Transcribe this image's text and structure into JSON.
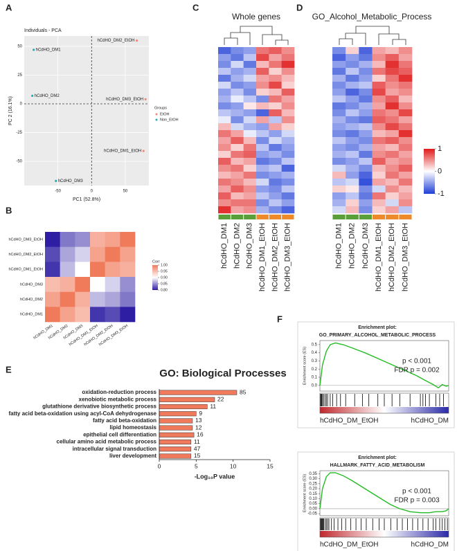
{
  "chart_data": [
    {
      "panel": "A",
      "type": "scatter",
      "title": "Individuals - PCA",
      "x_label": "PC1 (52.8%)",
      "y_label": "PC 2 (16.1%)",
      "xlim": [
        -100,
        85
      ],
      "ylim": [
        -71,
        59
      ],
      "xticks": [
        -50,
        0,
        50
      ],
      "yticks": [
        -50,
        -25,
        0,
        25,
        50
      ],
      "legend_title": "Groups",
      "legend": "right",
      "series": [
        {
          "name": "EtOH",
          "color": "#f4877a",
          "x": [
            67,
            80,
            77
          ],
          "y": [
            55,
            4,
            -41
          ],
          "labels": [
            "hCdHO_DM2_EtOH",
            "hCdHO_DM3_EtOH",
            "hCdHO_DM1_EtOH"
          ]
        },
        {
          "name": "Non_EtOH",
          "color": "#1fb0b8",
          "x": [
            -86,
            -88,
            -53
          ],
          "y": [
            47,
            7,
            -67
          ],
          "labels": [
            "hCdHO_DM1",
            "hCdHO_DM2",
            "hCdHO_DM3"
          ]
        }
      ]
    },
    {
      "panel": "B",
      "type": "heatmap",
      "rows": [
        "hCdHO_DM3_EtOH",
        "hCdHO_DM2_EtOH",
        "hCdHO_DM1_EtOH",
        "hCdHO_DM3",
        "hCdHO_DM2",
        "hCdHO_DM1"
      ],
      "columns": [
        "hCdHO_DM1",
        "hCdHO_DM2",
        "hCdHO_DM3",
        "hCdHO_DM1_EtOH",
        "hCdHO_DM2_EtOH",
        "hCdHO_DM3_EtOH"
      ],
      "values": [
        [
          0.8,
          0.84,
          0.85,
          0.96,
          0.97,
          1.0
        ],
        [
          0.82,
          0.86,
          0.88,
          0.97,
          1.0,
          0.97
        ],
        [
          0.81,
          0.87,
          0.9,
          1.0,
          0.97,
          0.96
        ],
        [
          0.95,
          0.96,
          1.0,
          0.9,
          0.88,
          0.85
        ],
        [
          0.97,
          1.0,
          0.96,
          0.87,
          0.86,
          0.84
        ],
        [
          1.0,
          0.97,
          0.95,
          0.81,
          0.82,
          0.8
        ]
      ],
      "zlim": [
        0.8,
        1.0
      ],
      "colors": [
        "#2e1ea3",
        "#ffffff",
        "#f07b5b"
      ],
      "legend_title": "Corr",
      "zticks": [
        {
          "value": 1,
          "label": "1.00"
        },
        0.95,
        {
          "value": 0.9,
          "label": "0.90"
        },
        0.85,
        {
          "value": 0.8,
          "label": "0.80"
        }
      ]
    },
    {
      "panel": "C",
      "type": "heatmap",
      "title": "Whole genes",
      "columns": [
        "hCdHO_DM1",
        "hCdHO_DM2",
        "hCdHO_DM3",
        "hCdHO_DM1_EtOH",
        "hCdHO_DM2_EtOH",
        "hCdHO_DM3_EtOH"
      ],
      "group_colors": [
        "#5a9e3a",
        "#5a9e3a",
        "#5a9e3a",
        "#ee8a2a",
        "#ee8a2a",
        "#ee8a2a"
      ],
      "zlim": [
        -1,
        1
      ],
      "colors": [
        "#1f3fd6",
        "#ffffff",
        "#e01a1a"
      ],
      "values": [
        [
          -0.8,
          -0.6,
          -0.5,
          0.6,
          0.7,
          0.5
        ],
        [
          -0.5,
          -0.7,
          -0.3,
          0.8,
          0.4,
          0.6
        ],
        [
          -0.6,
          -0.2,
          -0.7,
          0.3,
          0.6,
          0.9
        ],
        [
          -0.3,
          -0.5,
          -0.4,
          0.7,
          0.2,
          0.5
        ],
        [
          -0.7,
          -0.4,
          -0.2,
          0.4,
          0.5,
          0.3
        ],
        [
          -0.2,
          -0.6,
          -0.5,
          0.5,
          0.8,
          0.2
        ],
        [
          -0.5,
          -0.3,
          -0.6,
          0.2,
          0.3,
          0.7
        ],
        [
          -0.4,
          -0.1,
          -0.3,
          -0.6,
          0.6,
          0.4
        ],
        [
          -0.6,
          -0.5,
          0.1,
          0.3,
          0.2,
          0.5
        ],
        [
          -0.3,
          -0.4,
          -0.5,
          -0.8,
          0.7,
          0.3
        ],
        [
          -0.1,
          -0.6,
          -0.2,
          0.4,
          -0.3,
          0.5
        ],
        [
          0.3,
          -0.2,
          -0.4,
          -0.5,
          0.4,
          0.2
        ],
        [
          0.6,
          0.4,
          -0.1,
          -0.3,
          -0.5,
          -0.2
        ],
        [
          0.4,
          0.7,
          0.3,
          -0.6,
          -0.2,
          -0.4
        ],
        [
          0.5,
          0.2,
          0.6,
          -0.3,
          -0.7,
          -0.5
        ],
        [
          0.2,
          0.6,
          0.7,
          -0.5,
          -0.4,
          -0.6
        ],
        [
          0.7,
          0.3,
          0.4,
          -0.7,
          -0.6,
          -0.3
        ],
        [
          0.5,
          0.6,
          0.2,
          -0.4,
          -0.3,
          -0.8
        ],
        [
          0.3,
          0.4,
          0.6,
          -0.6,
          -0.5,
          -0.4
        ],
        [
          0.6,
          0.5,
          0.3,
          -0.2,
          -0.7,
          -0.6
        ],
        [
          0.4,
          0.7,
          0.5,
          -0.5,
          -0.6,
          -0.3
        ],
        [
          0.7,
          0.3,
          0.4,
          -0.3,
          -0.5,
          -0.7
        ],
        [
          0.5,
          0.6,
          0.6,
          -0.6,
          -0.3,
          -0.5
        ],
        [
          0.9,
          0.4,
          0.5,
          -0.4,
          -0.6,
          -0.8
        ]
      ]
    },
    {
      "panel": "D",
      "type": "heatmap",
      "title": "GO_Alcohol_Metabolic_Process",
      "columns": [
        "hCdHO_DM1",
        "hCdHO_DM2",
        "hCdHO_DM3",
        "hCdHO_DM1_EtOH",
        "hCdHO_DM2_EtOH",
        "hCdHO_DM3_EtOH"
      ],
      "group_colors": [
        "#5a9e3a",
        "#5a9e3a",
        "#5a9e3a",
        "#ee8a2a",
        "#ee8a2a",
        "#ee8a2a"
      ],
      "zlim": [
        -1,
        1
      ],
      "colors": [
        "#1f3fd6",
        "#ffffff",
        "#e01a1a"
      ],
      "zticks": [
        1,
        0,
        -1
      ],
      "values": [
        [
          -0.6,
          0.2,
          -0.8,
          0.4,
          0.3,
          0.5
        ],
        [
          -0.8,
          -0.5,
          -0.7,
          0.5,
          0.7,
          0.4
        ],
        [
          -0.5,
          -0.6,
          -0.4,
          0.3,
          0.9,
          0.6
        ],
        [
          -0.7,
          -0.3,
          -0.6,
          0.6,
          0.8,
          0.7
        ],
        [
          -0.4,
          -0.7,
          -0.5,
          0.2,
          0.6,
          0.9
        ],
        [
          -0.6,
          -0.4,
          -0.3,
          0.7,
          0.5,
          0.6
        ],
        [
          -0.5,
          -0.8,
          -0.6,
          0.8,
          0.4,
          0.5
        ],
        [
          -0.3,
          -0.5,
          -0.7,
          0.5,
          0.7,
          0.3
        ],
        [
          -0.7,
          -0.6,
          -0.4,
          0.4,
          0.9,
          0.5
        ],
        [
          -0.6,
          -0.3,
          -0.5,
          0.6,
          0.5,
          0.8
        ],
        [
          -0.4,
          -0.6,
          -0.7,
          0.7,
          0.6,
          0.4
        ],
        [
          -0.5,
          -0.4,
          -0.3,
          0.5,
          0.8,
          0.6
        ],
        [
          -0.6,
          -0.7,
          -0.5,
          0.3,
          0.4,
          0.9
        ],
        [
          -0.3,
          -0.5,
          -0.6,
          0.6,
          0.7,
          0.5
        ],
        [
          -0.5,
          -0.6,
          -0.4,
          0.4,
          0.3,
          0.6
        ],
        [
          -0.4,
          -0.3,
          -0.7,
          0.5,
          0.6,
          0.4
        ],
        [
          -0.6,
          -0.5,
          -0.3,
          0.7,
          0.4,
          0.5
        ],
        [
          -0.2,
          -0.4,
          -0.6,
          0.3,
          0.5,
          0.7
        ],
        [
          0.3,
          -0.5,
          -0.8,
          0.2,
          0.6,
          0.4
        ],
        [
          -0.3,
          -0.2,
          -0.9,
          0.4,
          0.3,
          0.6
        ],
        [
          0.2,
          0.1,
          -0.6,
          -0.2,
          0.5,
          0.3
        ],
        [
          -0.5,
          -0.3,
          -0.7,
          0.6,
          0.2,
          0.4
        ],
        [
          -0.4,
          0.2,
          -0.5,
          0.3,
          -0.2,
          0.5
        ],
        [
          -0.2,
          0.3,
          -0.6,
          0.2,
          0.4,
          -0.3
        ]
      ]
    },
    {
      "panel": "E",
      "type": "barh",
      "title": "GO: Biological Processes",
      "categories": [
        "oxidation-reduction process",
        "xenobiotic metabolic process",
        "glutathione derivative biosynthetic process",
        "fatty acid beta-oxidation using acyl-CoA dehydrogenase",
        "fatty acid beta-oxidation",
        "lipid homeostasis",
        "epithelial cell differentiation",
        "cellular amino acid metabolic process",
        "intracellular signal transduction",
        "liver development"
      ],
      "values": [
        10.5,
        7.5,
        6.5,
        5.0,
        4.5,
        4.5,
        4.7,
        4.3,
        4.3,
        4.3
      ],
      "gene_counts": [
        85,
        22,
        11,
        9,
        13,
        12,
        16,
        11,
        47,
        15
      ],
      "color": "#ef7a5c",
      "x_label": "-Log₁₀P value",
      "xlim": [
        0,
        15
      ],
      "xticks": [
        0,
        5,
        10,
        15
      ]
    },
    {
      "panel": "F",
      "type": "gsea",
      "title": "Enrichment plot:",
      "subtitle": "GO_PRIMARY_ALCOHOL_METABOLIC_PROCESS",
      "y_label": "Enrichment score (ES)",
      "x": [
        0,
        0.02,
        0.05,
        0.08,
        0.12,
        0.18,
        0.25,
        0.35,
        0.45,
        0.55,
        0.65,
        0.75,
        0.82,
        0.88,
        0.92,
        0.95,
        0.98,
        1
      ],
      "values": [
        0,
        0.25,
        0.42,
        0.5,
        0.52,
        0.5,
        0.46,
        0.4,
        0.33,
        0.26,
        0.19,
        0.12,
        0.06,
        0.01,
        -0.03,
        0.01,
        -0.01,
        0
      ],
      "xlim": [
        0,
        1
      ],
      "ylim": [
        -0.07,
        0.55
      ],
      "yticks": [
        {
          "value": 0,
          "label": "0.0"
        },
        0.1,
        0.2,
        0.3,
        0.4,
        0.5
      ],
      "color": "#22bb22",
      "hits": [
        0.005,
        0.01,
        0.015,
        0.02,
        0.03,
        0.04,
        0.05,
        0.06,
        0.08,
        0.1,
        0.13,
        0.16,
        0.2,
        0.27,
        0.33,
        0.38,
        0.45,
        0.5,
        0.56,
        0.62,
        0.7,
        0.78,
        0.8,
        0.82,
        0.85,
        0.9,
        0.93,
        0.96
      ],
      "annotations": [
        "p < 0.001",
        "FDR p = 0.002"
      ],
      "group_labels": [
        "hCdHO_DM_EtOH",
        "hCdHO_DM"
      ],
      "group_colors": [
        "#c0282d",
        "#2a2aa8"
      ]
    },
    {
      "type": "gsea",
      "title": "Enrichment plot:",
      "subtitle": "HALLMARK_FATTY_ACID_METABOLISM",
      "y_label": "Enrichment score (ES)",
      "x": [
        0,
        0.02,
        0.05,
        0.08,
        0.12,
        0.18,
        0.25,
        0.35,
        0.45,
        0.55,
        0.62,
        0.7,
        0.78,
        0.85,
        0.9,
        0.95,
        0.98,
        1
      ],
      "values": [
        0,
        0.2,
        0.32,
        0.36,
        0.36,
        0.33,
        0.28,
        0.2,
        0.12,
        0.04,
        0,
        -0.03,
        -0.04,
        -0.04,
        -0.03,
        -0.03,
        -0.02,
        0
      ],
      "xlim": [
        0,
        1
      ],
      "ylim": [
        -0.07,
        0.38
      ],
      "yticks": [
        -0.05,
        {
          "value": 0,
          "label": "0.00"
        },
        0.05,
        {
          "value": 0.1,
          "label": "0.10"
        },
        0.15,
        {
          "value": 0.2,
          "label": "0.20"
        },
        0.25,
        {
          "value": 0.3,
          "label": "0.30"
        },
        0.35
      ],
      "color": "#22bb22",
      "hits": [
        0.005,
        0.01,
        0.015,
        0.02,
        0.025,
        0.03,
        0.04,
        0.05,
        0.06,
        0.07,
        0.09,
        0.11,
        0.14,
        0.17,
        0.2,
        0.24,
        0.28,
        0.32,
        0.36,
        0.41,
        0.46,
        0.5,
        0.55,
        0.6,
        0.64,
        0.68,
        0.72,
        0.76,
        0.8,
        0.84,
        0.88,
        0.9,
        0.93,
        0.95,
        0.97,
        0.99
      ],
      "annotations": [
        "p < 0.001",
        "FDR p = 0.003"
      ],
      "group_labels": [
        "hCdHO_DM_EtOH",
        "hCdHO_DM"
      ],
      "group_colors": [
        "#c0282d",
        "#2a2aa8"
      ]
    }
  ]
}
